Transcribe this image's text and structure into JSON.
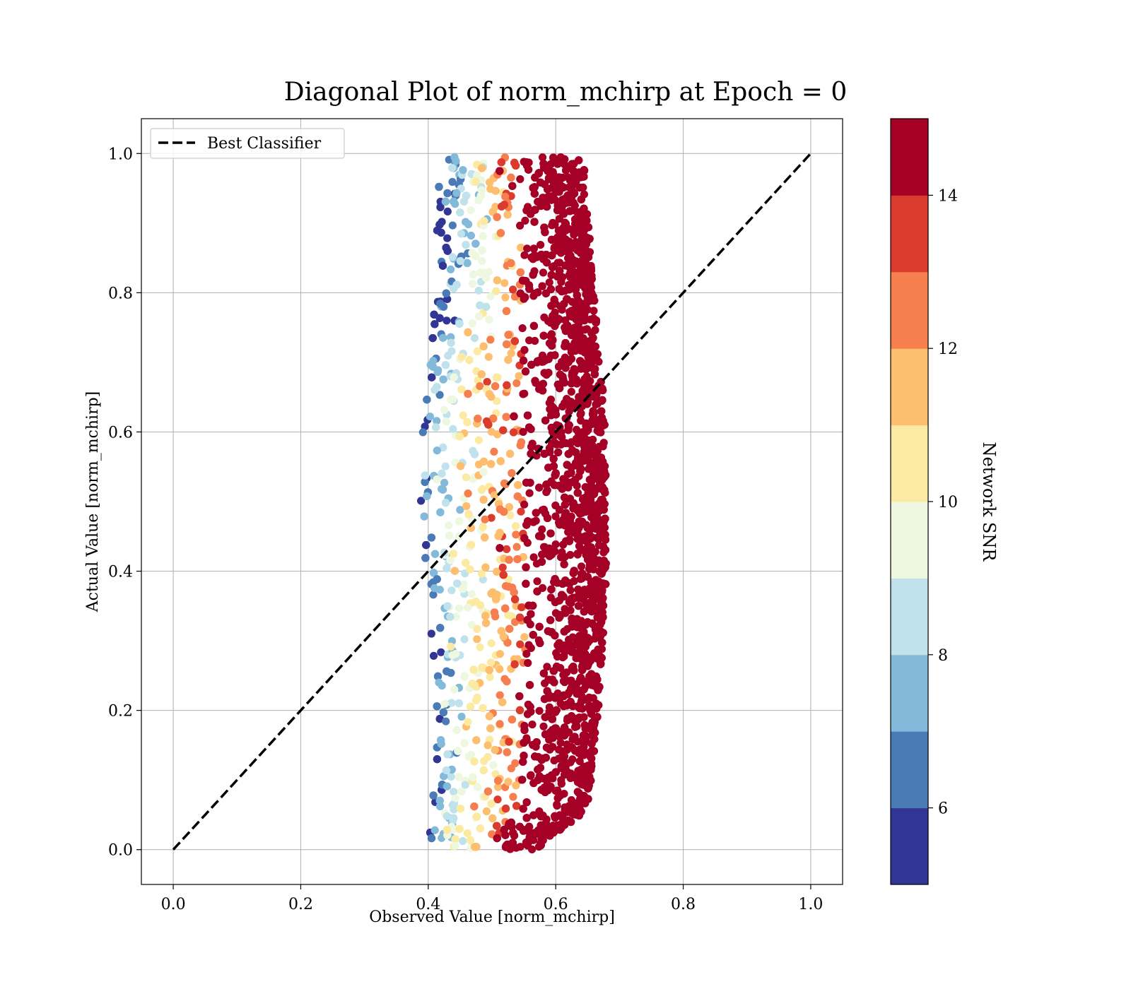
{
  "chart_data": {
    "type": "scatter",
    "title": "Diagonal Plot of norm_mchirp at Epoch = 0",
    "xlabel": "Observed Value [norm_mchirp]",
    "ylabel": "Actual Value [norm_mchirp]",
    "xlim": [
      -0.05,
      1.05
    ],
    "ylim": [
      -0.05,
      1.05
    ],
    "xticks": [
      "0.0",
      "0.2",
      "0.4",
      "0.6",
      "0.8",
      "1.0"
    ],
    "yticks": [
      "0.0",
      "0.2",
      "0.4",
      "0.6",
      "0.8",
      "1.0"
    ],
    "grid": true,
    "legend": {
      "position": "top-left",
      "entries": [
        "Best Classifier"
      ]
    },
    "reference_line": {
      "name": "Best Classifier",
      "x": [
        0.0,
        1.0
      ],
      "y": [
        0.0,
        1.0
      ],
      "style": "dashed",
      "color": "#000000"
    },
    "scatter_region": {
      "x_range": [
        0.4,
        0.68
      ],
      "y_range": [
        0.0,
        1.0
      ],
      "note": "dense point cloud colored by Network SNR"
    },
    "colorbar": {
      "label": "Network SNR",
      "range": [
        5,
        15
      ],
      "ticks": [
        "6",
        "8",
        "10",
        "12",
        "14"
      ],
      "bins": [
        {
          "from": 5,
          "to": 6,
          "color": "#313695"
        },
        {
          "from": 6,
          "to": 7,
          "color": "#4a7bb7"
        },
        {
          "from": 7,
          "to": 8,
          "color": "#83b9d9"
        },
        {
          "from": 8,
          "to": 9,
          "color": "#c0e2ec"
        },
        {
          "from": 9,
          "to": 10,
          "color": "#eef7df"
        },
        {
          "from": 10,
          "to": 11,
          "color": "#fdeaa2"
        },
        {
          "from": 11,
          "to": 12,
          "color": "#fdbe6f"
        },
        {
          "from": 12,
          "to": 13,
          "color": "#f57f4e"
        },
        {
          "from": 13,
          "to": 14,
          "color": "#db3b2c"
        },
        {
          "from": 14,
          "to": 15,
          "color": "#a50026"
        }
      ]
    }
  }
}
